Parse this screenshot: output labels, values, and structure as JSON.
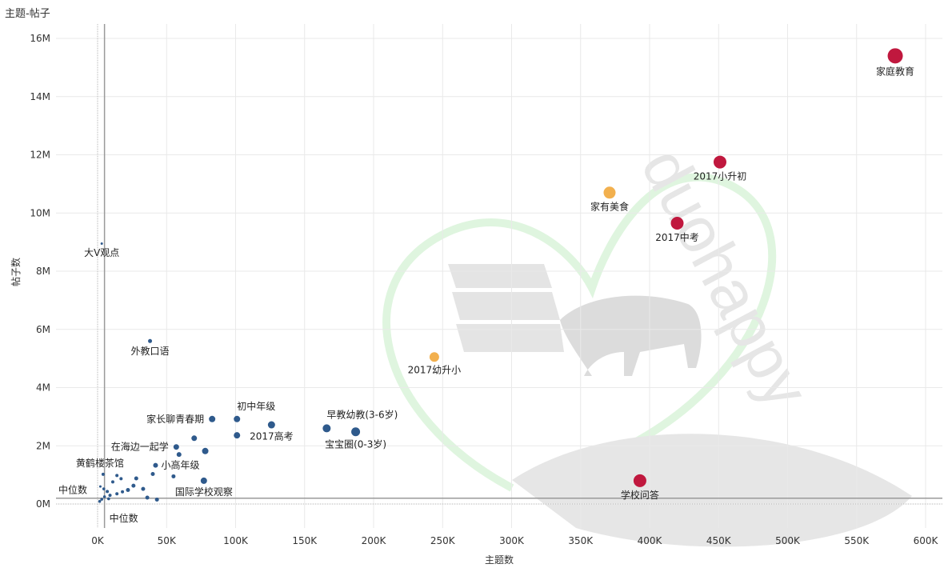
{
  "sheet_title": "主题-帖子",
  "watermark_text": "duohappy",
  "colors": {
    "low": "#2f5a8c",
    "mid": "#f2b04e",
    "high": "#c0183e",
    "grid": "#e9e9e9",
    "ref_line": "#9a9a9a",
    "watermark": "#e6e6e6",
    "watermark_outline": "#dff5df"
  },
  "chart_data": {
    "type": "scatter",
    "xlabel": "主题数",
    "ylabel": "帖子数",
    "xlim": [
      -30000,
      610000
    ],
    "ylim": [
      -800000,
      16500000
    ],
    "xticks": [
      {
        "value": 0,
        "label": "0K"
      },
      {
        "value": 50000,
        "label": "50K"
      },
      {
        "value": 100000,
        "label": "100K"
      },
      {
        "value": 150000,
        "label": "150K"
      },
      {
        "value": 200000,
        "label": "200K"
      },
      {
        "value": 250000,
        "label": "250K"
      },
      {
        "value": 300000,
        "label": "300K"
      },
      {
        "value": 350000,
        "label": "350K"
      },
      {
        "value": 400000,
        "label": "400K"
      },
      {
        "value": 450000,
        "label": "450K"
      },
      {
        "value": 500000,
        "label": "500K"
      },
      {
        "value": 550000,
        "label": "550K"
      },
      {
        "value": 600000,
        "label": "600K"
      }
    ],
    "yticks": [
      {
        "value": 0,
        "label": "0M"
      },
      {
        "value": 2000000,
        "label": "2M"
      },
      {
        "value": 4000000,
        "label": "4M"
      },
      {
        "value": 6000000,
        "label": "6M"
      },
      {
        "value": 8000000,
        "label": "8M"
      },
      {
        "value": 10000000,
        "label": "10M"
      },
      {
        "value": 12000000,
        "label": "12M"
      },
      {
        "value": 14000000,
        "label": "14M"
      },
      {
        "value": 16000000,
        "label": "16M"
      }
    ],
    "reference_lines": {
      "x_median": {
        "value": 5000,
        "label": "中位数"
      },
      "y_median": {
        "value": 200000,
        "label": "中位数"
      }
    },
    "points": [
      {
        "label": "家庭教育",
        "x": 578000,
        "y": 15400000,
        "size": 9.5,
        "color": "high",
        "pos": "below"
      },
      {
        "label": "2017小升初",
        "x": 451000,
        "y": 11750000,
        "size": 8,
        "color": "high",
        "pos": "below"
      },
      {
        "label": "家有美食",
        "x": 371000,
        "y": 10700000,
        "size": 7.5,
        "color": "mid",
        "pos": "below"
      },
      {
        "label": "2017中考",
        "x": 420000,
        "y": 9650000,
        "size": 8,
        "color": "high",
        "pos": "below"
      },
      {
        "label": "2017幼升小",
        "x": 244000,
        "y": 5050000,
        "size": 6,
        "color": "mid",
        "pos": "below"
      },
      {
        "label": "学校问答",
        "x": 393000,
        "y": 800000,
        "size": 8,
        "color": "high",
        "pos": "below"
      },
      {
        "label": "早教幼教(3-6岁)",
        "x": 166000,
        "y": 2600000,
        "size": 5,
        "color": "low",
        "pos": "above-right"
      },
      {
        "label": "宝宝圈(0-3岁)",
        "x": 187000,
        "y": 2480000,
        "size": 5.5,
        "color": "low",
        "pos": "below"
      },
      {
        "label": "2017高考",
        "x": 126000,
        "y": 2720000,
        "size": 4.5,
        "color": "low",
        "pos": "below-left"
      },
      {
        "label": "初中年级",
        "x": 101000,
        "y": 2920000,
        "size": 4,
        "color": "low",
        "pos": "above-right"
      },
      {
        "label": "家长聊青春期",
        "x": 83000,
        "y": 2920000,
        "size": 4,
        "color": "low",
        "pos": "left"
      },
      {
        "label": "",
        "x": 101000,
        "y": 2360000,
        "size": 4,
        "color": "low",
        "pos": "none"
      },
      {
        "label": "在海边一起学",
        "x": 57000,
        "y": 1960000,
        "size": 3.5,
        "color": "low",
        "pos": "left"
      },
      {
        "label": "",
        "x": 70000,
        "y": 2260000,
        "size": 3.5,
        "color": "low",
        "pos": "none"
      },
      {
        "label": "",
        "x": 78000,
        "y": 1820000,
        "size": 4,
        "color": "low",
        "pos": "none"
      },
      {
        "label": "",
        "x": 59000,
        "y": 1700000,
        "size": 3,
        "color": "low",
        "pos": "none"
      },
      {
        "label": "小高年级",
        "x": 42000,
        "y": 1330000,
        "size": 3,
        "color": "low",
        "pos": "right"
      },
      {
        "label": "国际学校观察",
        "x": 77000,
        "y": 800000,
        "size": 4,
        "color": "low",
        "pos": "below"
      },
      {
        "label": "外教口语",
        "x": 38000,
        "y": 5600000,
        "size": 2.5,
        "color": "low",
        "pos": "below"
      },
      {
        "label": "大V观点",
        "x": 3000,
        "y": 8950000,
        "size": 1.5,
        "color": "low",
        "pos": "below"
      },
      {
        "label": "黄鹤楼茶馆",
        "x": 4000,
        "y": 1020000,
        "size": 2,
        "color": "low",
        "pos": "above-left"
      },
      {
        "label": "",
        "x": 55000,
        "y": 950000,
        "size": 2.5,
        "color": "low",
        "pos": "none"
      },
      {
        "label": "",
        "x": 40000,
        "y": 1030000,
        "size": 2.5,
        "color": "low",
        "pos": "none"
      },
      {
        "label": "",
        "x": 28000,
        "y": 880000,
        "size": 2.5,
        "color": "low",
        "pos": "none"
      },
      {
        "label": "",
        "x": 33000,
        "y": 520000,
        "size": 2.5,
        "color": "low",
        "pos": "none"
      },
      {
        "label": "",
        "x": 26000,
        "y": 630000,
        "size": 2.5,
        "color": "low",
        "pos": "none"
      },
      {
        "label": "",
        "x": 22000,
        "y": 480000,
        "size": 2.5,
        "color": "low",
        "pos": "none"
      },
      {
        "label": "",
        "x": 14000,
        "y": 980000,
        "size": 2,
        "color": "low",
        "pos": "none"
      },
      {
        "label": "",
        "x": 17000,
        "y": 870000,
        "size": 2,
        "color": "low",
        "pos": "none"
      },
      {
        "label": "",
        "x": 11000,
        "y": 760000,
        "size": 2,
        "color": "low",
        "pos": "none"
      },
      {
        "label": "",
        "x": 18000,
        "y": 420000,
        "size": 2,
        "color": "low",
        "pos": "none"
      },
      {
        "label": "",
        "x": 14000,
        "y": 350000,
        "size": 2,
        "color": "low",
        "pos": "none"
      },
      {
        "label": "",
        "x": 9000,
        "y": 300000,
        "size": 2,
        "color": "low",
        "pos": "none"
      },
      {
        "label": "",
        "x": 7000,
        "y": 430000,
        "size": 2,
        "color": "low",
        "pos": "none"
      },
      {
        "label": "",
        "x": 5000,
        "y": 250000,
        "size": 1.8,
        "color": "low",
        "pos": "none"
      },
      {
        "label": "",
        "x": 3000,
        "y": 160000,
        "size": 1.8,
        "color": "low",
        "pos": "none"
      },
      {
        "label": "",
        "x": 1500,
        "y": 90000,
        "size": 1.8,
        "color": "low",
        "pos": "none"
      },
      {
        "label": "",
        "x": 4500,
        "y": 520000,
        "size": 1.8,
        "color": "low",
        "pos": "none"
      },
      {
        "label": "",
        "x": 8000,
        "y": 180000,
        "size": 1.8,
        "color": "low",
        "pos": "none"
      },
      {
        "label": "",
        "x": 36000,
        "y": 220000,
        "size": 2.5,
        "color": "low",
        "pos": "none"
      },
      {
        "label": "",
        "x": 43000,
        "y": 150000,
        "size": 2.5,
        "color": "low",
        "pos": "none"
      },
      {
        "label": "",
        "x": 2000,
        "y": 600000,
        "size": 1.5,
        "color": "low",
        "pos": "none"
      }
    ]
  }
}
